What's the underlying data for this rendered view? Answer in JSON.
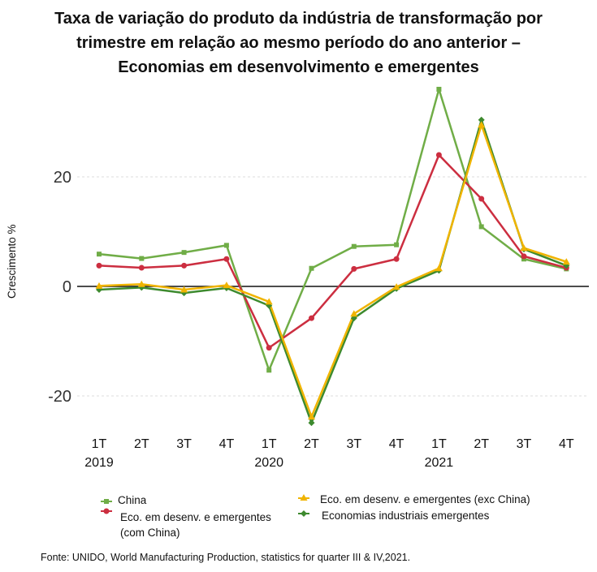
{
  "chart_data": {
    "type": "line",
    "title_lines": [
      "Taxa de variação do produto da indústria de transformação por",
      "trimestre em relação ao mesmo período do ano anterior –",
      "Economias em desenvolvimento e emergentes"
    ],
    "xlabel": "",
    "ylabel": "Crescimento %",
    "ylim": [
      -27,
      37
    ],
    "yticks": [
      20,
      0,
      -20
    ],
    "grid": true,
    "legend_placement": "bottom",
    "categories": [
      "1T",
      "2T",
      "3T",
      "4T",
      "1T",
      "2T",
      "3T",
      "4T",
      "1T",
      "2T",
      "3T",
      "4T"
    ],
    "year_labels": [
      {
        "label": "2019",
        "index": 0
      },
      {
        "label": "2020",
        "index": 4
      },
      {
        "label": "2021",
        "index": 8
      }
    ],
    "series": [
      {
        "name": "China",
        "color": "#70ad47",
        "marker": "square",
        "values": [
          5.9,
          5.1,
          6.2,
          7.5,
          -15.3,
          3.3,
          7.3,
          7.6,
          36.0,
          10.9,
          5.0,
          3.2
        ]
      },
      {
        "name": "Eco. em desenv. e emergentes (com China)",
        "label_lines": [
          "Eco. em desenv. e emergentes",
          "(com China)"
        ],
        "color": "#cc2e40",
        "marker": "circle",
        "values": [
          3.8,
          3.4,
          3.8,
          5.0,
          -11.2,
          -5.8,
          3.2,
          5.0,
          24.0,
          16.0,
          5.5,
          3.4
        ]
      },
      {
        "name": "Eco. em desenv. e emergentes (exc China)",
        "color": "#f0b400",
        "marker": "triangle",
        "values": [
          0.1,
          0.4,
          -0.6,
          0.2,
          -2.8,
          -23.8,
          -5.0,
          -0.1,
          3.3,
          29.5,
          7.0,
          4.5
        ]
      },
      {
        "name": "Economias industriais emergentes",
        "color": "#3d8a2e",
        "marker": "diamond",
        "values": [
          -0.6,
          -0.2,
          -1.2,
          -0.3,
          -3.5,
          -24.9,
          -5.8,
          -0.4,
          2.9,
          30.4,
          6.8,
          3.8
        ]
      }
    ],
    "source": "Fonte: UNIDO, World Manufacturing Production, statistics for quarter III & IV,2021."
  }
}
